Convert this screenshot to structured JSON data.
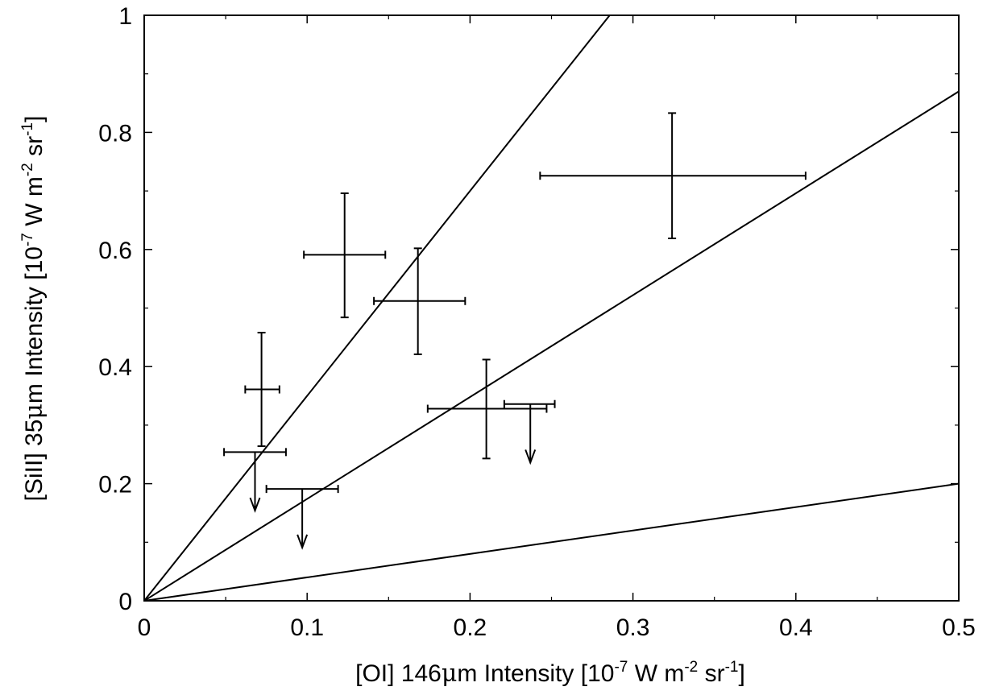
{
  "chart_data": {
    "type": "scatter",
    "xlabel": {
      "prefix": "[OI] 146",
      "mu": "μ",
      "mid": "m Intensity [10",
      "sup1": "-7",
      "mid2": " W m",
      "sup2": "-2",
      "mid3": " sr",
      "sup3": "-1",
      "suffix": "]"
    },
    "ylabel": {
      "prefix": "[SiII] 35",
      "mu": "μ",
      "mid": "m Intensity [10",
      "sup1": "-7",
      "mid2": " W m",
      "sup2": "-2",
      "mid3": " sr",
      "sup3": "-1",
      "suffix": "]"
    },
    "xlim": [
      0,
      0.5
    ],
    "ylim": [
      0,
      1
    ],
    "x_ticks": [
      0,
      0.1,
      0.2,
      0.3,
      0.4,
      0.5
    ],
    "x_tick_labels": [
      "0",
      "0.1",
      "0.2",
      "0.3",
      "0.4",
      "0.5"
    ],
    "y_ticks": [
      0,
      0.2,
      0.4,
      0.6,
      0.8,
      1
    ],
    "y_tick_labels": [
      "0",
      "0.2",
      "0.4",
      "0.6",
      "0.8",
      "1"
    ],
    "grid": false,
    "legend": "none",
    "reference_lines": [
      {
        "slope": 3.5
      },
      {
        "slope": 1.74
      },
      {
        "slope": 0.4
      }
    ],
    "points": [
      {
        "x": 0.324,
        "y": 0.726,
        "xerr": [
          0.243,
          0.406
        ],
        "yerr": [
          0.619,
          0.833
        ]
      },
      {
        "x": 0.123,
        "y": 0.591,
        "xerr": [
          0.098,
          0.148
        ],
        "yerr": [
          0.484,
          0.696
        ]
      },
      {
        "x": 0.168,
        "y": 0.512,
        "xerr": [
          0.141,
          0.197
        ],
        "yerr": [
          0.421,
          0.602
        ]
      },
      {
        "x": 0.072,
        "y": 0.361,
        "xerr": [
          0.062,
          0.083
        ],
        "yerr": [
          0.264,
          0.458
        ]
      },
      {
        "x": 0.21,
        "y": 0.328,
        "xerr": [
          0.174,
          0.247
        ],
        "yerr": [
          0.243,
          0.412
        ]
      },
      {
        "x": 0.068,
        "y": 0.254,
        "xerr": [
          0.049,
          0.087
        ],
        "upper_limit": true
      },
      {
        "x": 0.097,
        "y": 0.191,
        "xerr": [
          0.075,
          0.119
        ],
        "upper_limit": true
      },
      {
        "x": 0.237,
        "y": 0.336,
        "xerr": [
          0.221,
          0.252
        ],
        "upper_limit": true
      }
    ]
  }
}
